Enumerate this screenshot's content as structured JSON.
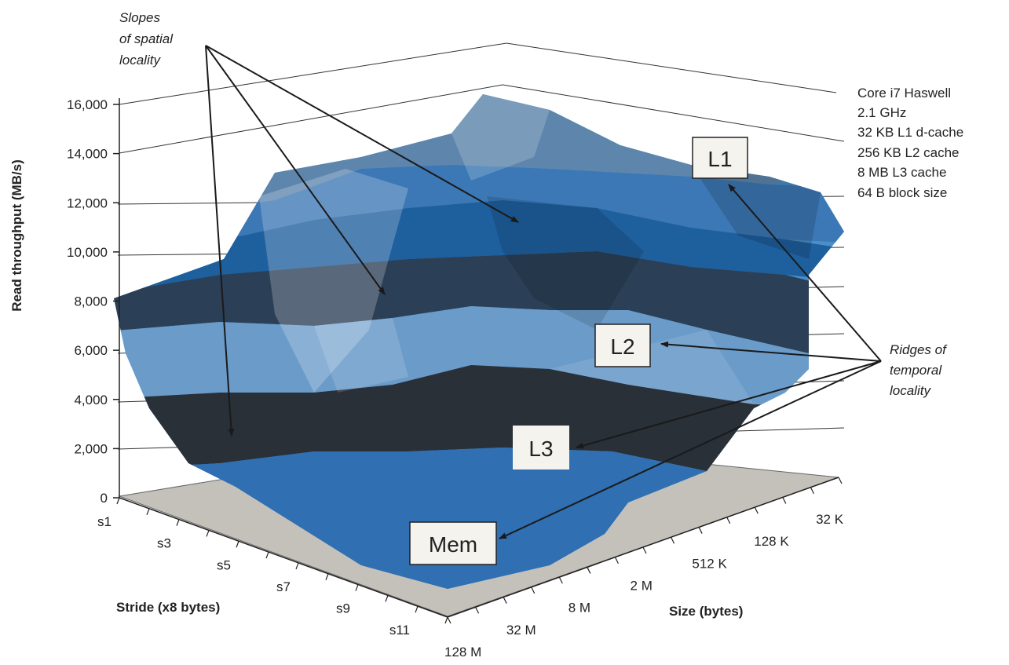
{
  "chart_data": {
    "type": "surface",
    "title": "",
    "ylabel": "Read throughput (MB/s)",
    "stride_label": "Stride (x8 bytes)",
    "size_label": "Size (bytes)",
    "ylim": [
      0,
      16000
    ],
    "y_ticks": [
      "0",
      "2,000",
      "4,000",
      "6,000",
      "8,000",
      "10,000",
      "12,000",
      "14,000",
      "16,000"
    ],
    "y_tick_values": [
      0,
      2000,
      4000,
      6000,
      8000,
      10000,
      12000,
      14000,
      16000
    ],
    "strides": [
      "s1",
      "s3",
      "s5",
      "s7",
      "s9",
      "s11"
    ],
    "sizes": [
      "128 M",
      "32 M",
      "8 M",
      "2 M",
      "512 K",
      "128 K",
      "32 K"
    ],
    "machine_info": [
      "Core i7 Haswell",
      "2.1 GHz",
      "32 KB L1 d-cache",
      "256 KB L2 cache",
      "8 MB L3 cache",
      "64 B block size"
    ],
    "surface_fill": "#4a90c8",
    "floor_fill": "#c4c0ba",
    "annotations": {
      "slopes": [
        "Slopes",
        "of spatial",
        "locality"
      ],
      "ridges": [
        "Ridges of",
        "temporal",
        "locality"
      ],
      "levels": [
        "L1",
        "L2",
        "L3",
        "Mem"
      ]
    }
  }
}
